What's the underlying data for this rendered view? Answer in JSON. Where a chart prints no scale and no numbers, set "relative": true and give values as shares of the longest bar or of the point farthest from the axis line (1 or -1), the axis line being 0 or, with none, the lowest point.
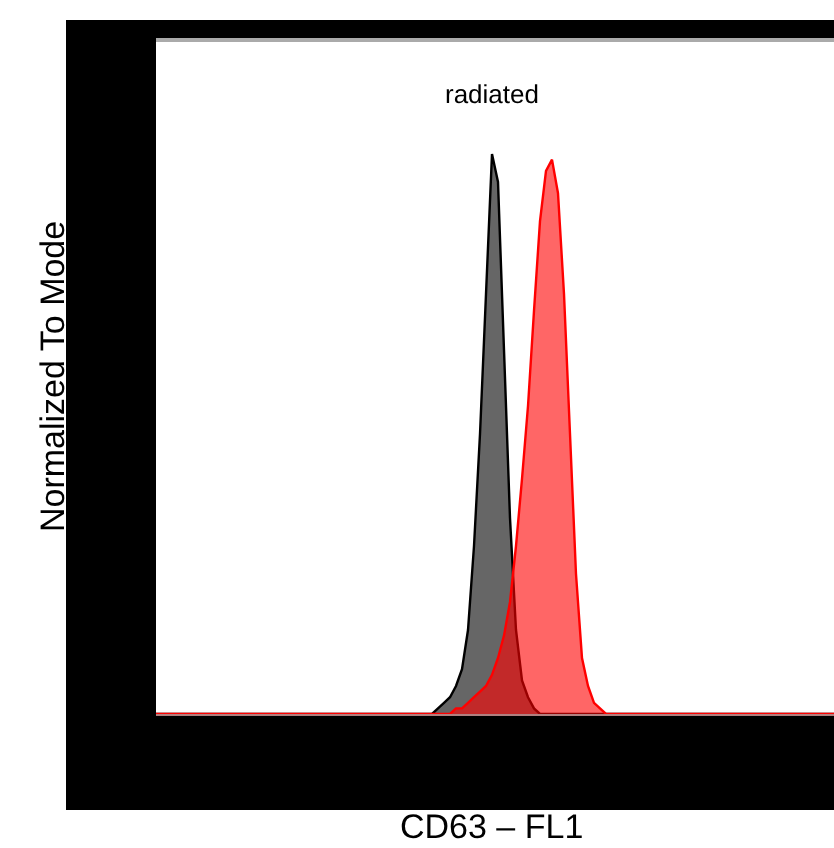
{
  "chart_data": {
    "type": "area",
    "relative": true,
    "title": "radiated",
    "xlabel": "CD63 – FL1",
    "ylabel": "Normalized To Mode",
    "categories": [
      null,
      null,
      null,
      null,
      null,
      null,
      null,
      null,
      null,
      null,
      null,
      null,
      null,
      null,
      null,
      null,
      null,
      null,
      null,
      null,
      null,
      null,
      null,
      null,
      null,
      null,
      null,
      null,
      null,
      null,
      null,
      null,
      null,
      null,
      null,
      null,
      null,
      null,
      null,
      null,
      null,
      null,
      null,
      null,
      null,
      null,
      null,
      null,
      null,
      null,
      null,
      null,
      null,
      null,
      null,
      null,
      null,
      null,
      null,
      null,
      null,
      null,
      null,
      null,
      null,
      null,
      null,
      null,
      null,
      null,
      null,
      null,
      null,
      null,
      null,
      null,
      null,
      null,
      null,
      null,
      null,
      null,
      null,
      null,
      null,
      null,
      null,
      null,
      null,
      null,
      null,
      null,
      null,
      null,
      null,
      null,
      null,
      null,
      null,
      null,
      null,
      null,
      null,
      null,
      null,
      null,
      null,
      null,
      null,
      null,
      null,
      null,
      null,
      null
    ],
    "series": [
      {
        "color": "#000000",
        "values": [
          0,
          0,
          0,
          0,
          0,
          0,
          0,
          0,
          0,
          0,
          0,
          0,
          0,
          0,
          0,
          0,
          0,
          0,
          0,
          0,
          0,
          0,
          0,
          0,
          0,
          0,
          0,
          0,
          0,
          0,
          0,
          0,
          0,
          0,
          0,
          0,
          0,
          0,
          0,
          0,
          0,
          0,
          0,
          0,
          0,
          0,
          0,
          0.01,
          0.02,
          0.03,
          0.05,
          0.08,
          0.15,
          0.3,
          0.5,
          0.75,
          1,
          0.95,
          0.65,
          0.35,
          0.15,
          0.06,
          0.03,
          0.01,
          0,
          0,
          0,
          0,
          0,
          0,
          0,
          0,
          0,
          0,
          0,
          0,
          0,
          0,
          0,
          0,
          0,
          0,
          0,
          0,
          0,
          0,
          0,
          0,
          0,
          0,
          0,
          0,
          0,
          0,
          0,
          0,
          0,
          0,
          0,
          0,
          0,
          0,
          0,
          0,
          0,
          0,
          0,
          0,
          0,
          0,
          0,
          0,
          0,
          0
        ]
      },
      {
        "color": "#ff0000",
        "values": [
          0,
          0,
          0,
          0,
          0,
          0,
          0,
          0,
          0,
          0,
          0,
          0,
          0,
          0,
          0,
          0,
          0,
          0,
          0,
          0,
          0,
          0,
          0,
          0,
          0,
          0,
          0,
          0,
          0,
          0,
          0,
          0,
          0,
          0,
          0,
          0,
          0,
          0,
          0,
          0,
          0,
          0,
          0,
          0,
          0,
          0,
          0,
          0,
          0,
          0,
          0.01,
          0.01,
          0.02,
          0.03,
          0.04,
          0.05,
          0.07,
          0.1,
          0.14,
          0.2,
          0.3,
          0.42,
          0.55,
          0.72,
          0.88,
          0.97,
          0.99,
          0.93,
          0.75,
          0.5,
          0.25,
          0.1,
          0.05,
          0.02,
          0.01,
          0,
          0,
          0,
          0,
          0,
          0,
          0,
          0,
          0,
          0,
          0,
          0,
          0,
          0,
          0,
          0,
          0,
          0,
          0,
          0,
          0,
          0,
          0,
          0,
          0,
          0,
          0,
          0,
          0,
          0,
          0,
          0,
          0,
          0,
          0,
          0,
          0,
          0,
          0
        ]
      }
    ]
  }
}
